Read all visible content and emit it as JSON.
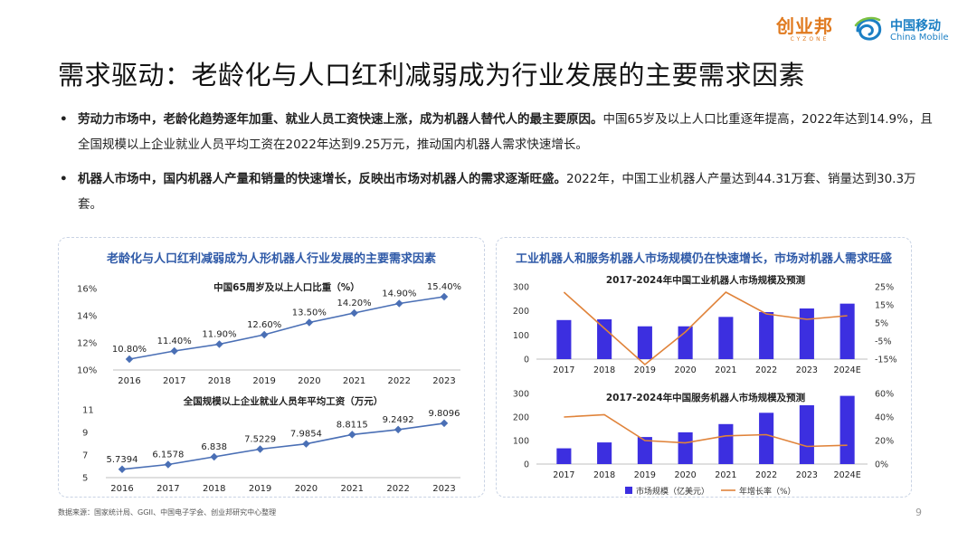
{
  "header": {
    "logo_cyzone": "创业邦",
    "logo_cyzone_en": "CYZONE",
    "logo_cm_cn": "中国移动",
    "logo_cm_en": "China Mobile"
  },
  "title": "需求驱动：老龄化与人口红利减弱成为行业发展的主要需求因素",
  "bullets": [
    {
      "marker": "•",
      "bold": "劳动力市场中，老龄化趋势逐年加重、就业人员工资快速上涨，成为机器人替代人的最主要原因。",
      "text": "中国65岁及以上人口比重逐年提高，2022年达到14.9%，且全国规模以上企业就业人员平均工资在2022年达到9.25万元，推动国内机器人需求快速增长。"
    },
    {
      "marker": "•",
      "bold": "机器人市场中，国内机器人产量和销量的快速增长，反映出市场对机器人的需求逐渐旺盛。",
      "text": "2022年，中国工业机器人产量达到44.31万套、销量达到30.3万套。"
    }
  ],
  "left_panel_title": "老龄化与人口红利减弱成为人形机器人行业发展的主要需求因素",
  "right_panel_title": "工业机器人和服务机器人市场规模仍在快速增长，市场对机器人需求旺盛",
  "chart_data": [
    {
      "type": "line",
      "title": "中国65周岁及以上人口比重（%）",
      "x": [
        "2016",
        "2017",
        "2018",
        "2019",
        "2020",
        "2021",
        "2022",
        "2023"
      ],
      "values": [
        10.8,
        11.4,
        11.9,
        12.6,
        13.5,
        14.2,
        14.9,
        15.4
      ],
      "labels": [
        "10.80%",
        "11.40%",
        "11.90%",
        "12.60%",
        "13.50%",
        "14.20%",
        "14.90%",
        "15.40%"
      ],
      "ylim": [
        10,
        16
      ],
      "yticks": [
        "10%",
        "12%",
        "14%",
        "16%"
      ],
      "color": "#4a6fb5"
    },
    {
      "type": "line",
      "title": "全国规模以上企业就业人员年平均工资（万元）",
      "x": [
        "2016",
        "2017",
        "2018",
        "2019",
        "2020",
        "2021",
        "2022",
        "2023"
      ],
      "values": [
        5.7394,
        6.1578,
        6.838,
        7.5229,
        7.9854,
        8.8115,
        9.2492,
        9.8096
      ],
      "labels": [
        "5.7394",
        "6.1578",
        "6.838",
        "7.5229",
        "7.9854",
        "8.8115",
        "9.2492",
        "9.8096"
      ],
      "ylim": [
        5,
        11
      ],
      "yticks": [
        "5",
        "7",
        "9",
        "11"
      ],
      "color": "#4a6fb5"
    },
    {
      "type": "bar",
      "title": "2017-2024年中国工业机器人市场规模及预测",
      "categories": [
        "2017",
        "2018",
        "2019",
        "2020",
        "2021",
        "2022",
        "2023",
        "2024E"
      ],
      "series": [
        {
          "name": "市场规模（亿美元）",
          "values": [
            162,
            165,
            136,
            136,
            175,
            195,
            210,
            230
          ]
        },
        {
          "name": "年增长率（%）",
          "values": [
            22,
            2,
            -18,
            0,
            22,
            10,
            7,
            9
          ]
        }
      ],
      "ylim": [
        0,
        300
      ],
      "yticks": [
        "0",
        "100",
        "200",
        "300"
      ],
      "y2lim": [
        -15,
        25
      ],
      "y2ticks": [
        "-15%",
        "-5%",
        "5%",
        "15%",
        "25%"
      ]
    },
    {
      "type": "bar",
      "title": "2017-2024年中国服务机器人市场规模及预测",
      "categories": [
        "2017",
        "2018",
        "2019",
        "2020",
        "2021",
        "2022",
        "2023",
        "2024E"
      ],
      "series": [
        {
          "name": "市场规模（亿美元）",
          "values": [
            67,
            92,
            115,
            135,
            170,
            218,
            250,
            290
          ]
        },
        {
          "name": "年增长率（%）",
          "values": [
            40,
            42,
            20,
            18,
            24,
            25,
            15,
            16
          ]
        }
      ],
      "ylim": [
        0,
        300
      ],
      "yticks": [
        "0",
        "100",
        "200",
        "300"
      ],
      "y2lim": [
        0,
        60
      ],
      "y2ticks": [
        "0%",
        "20%",
        "40%",
        "60%"
      ]
    }
  ],
  "legend": {
    "bar": "市场规模（亿美元）",
    "line": "年增长率（%）"
  },
  "colors": {
    "bar": "#3c2fe0",
    "growth_line": "#e0833a",
    "line": "#4a6fb5",
    "title": "#2f5aa8"
  },
  "source": "数据来源：国家统计局、GGII、中国电子学会、创业邦研究中心整理",
  "page_number": "9"
}
